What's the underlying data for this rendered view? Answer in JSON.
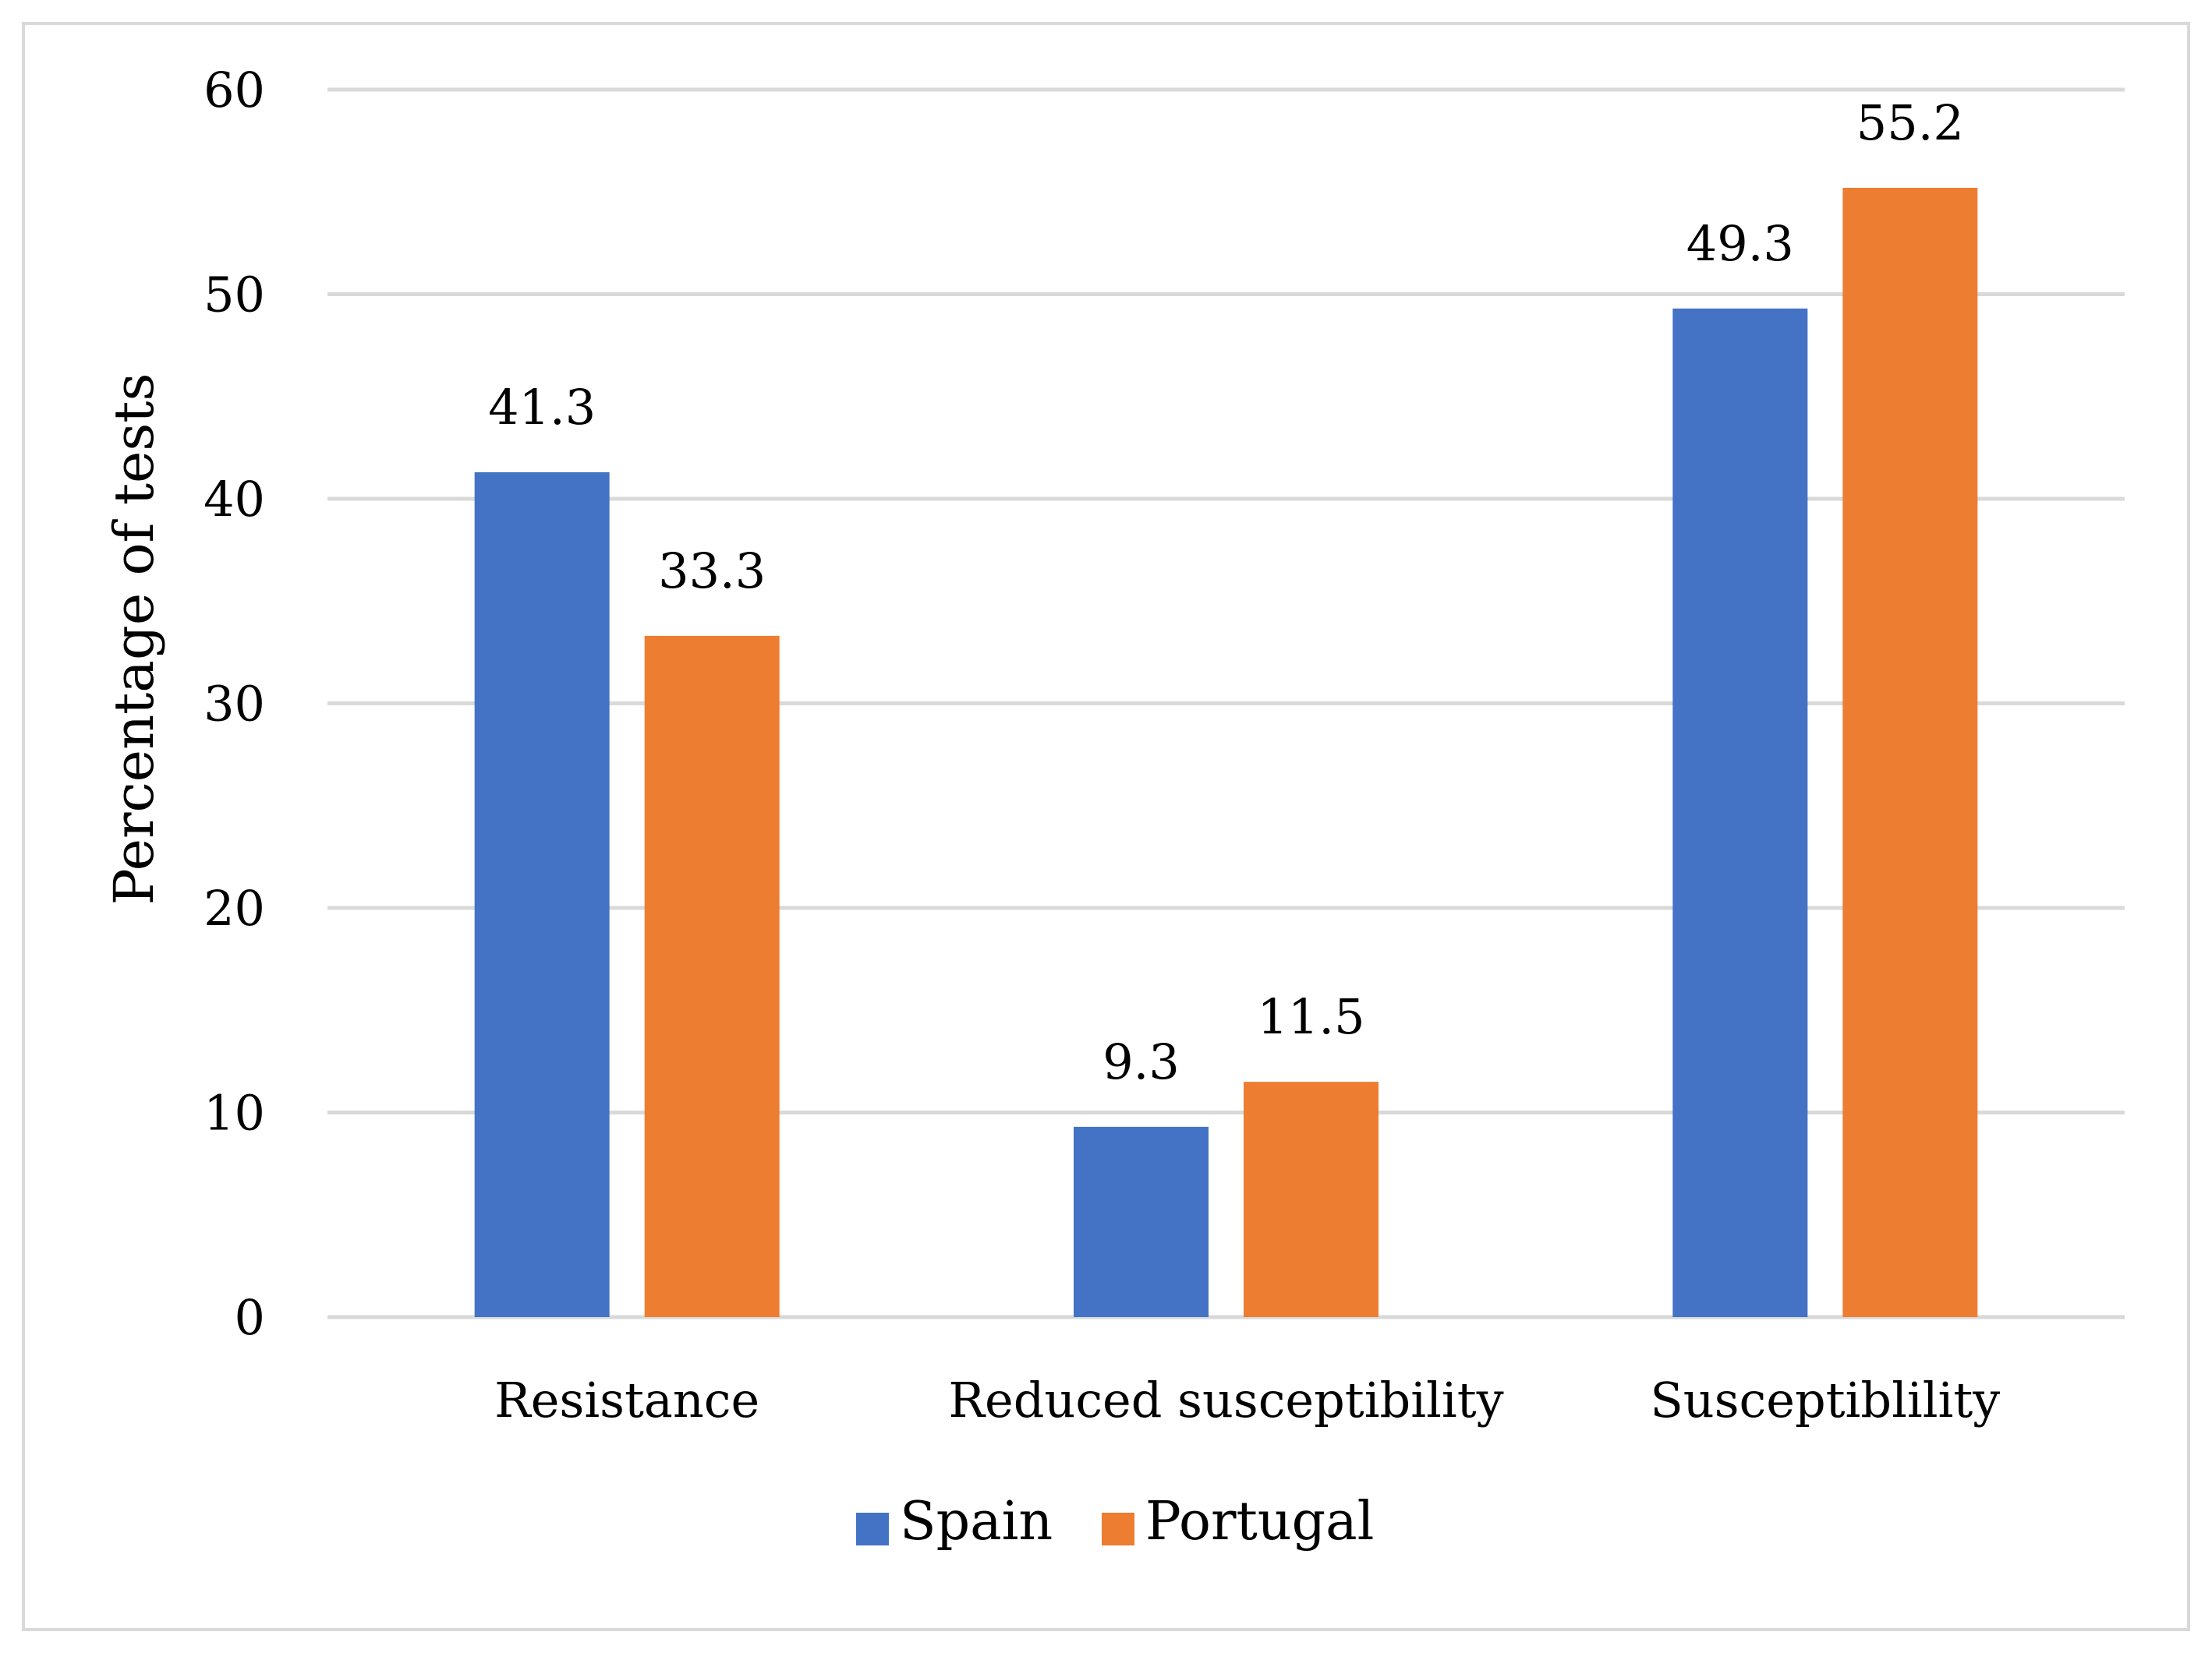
{
  "chart_data": {
    "type": "bar",
    "title": "",
    "xlabel": "",
    "ylabel": "Percentage of tests",
    "categories": [
      "Resistance",
      "Reduced susceptibility",
      "Susceptiblility"
    ],
    "series": [
      {
        "name": "Spain",
        "color": "#4472c4",
        "values": [
          41.3,
          9.3,
          49.3
        ]
      },
      {
        "name": "Portugal",
        "color": "#ed7d31",
        "values": [
          33.3,
          11.5,
          55.2
        ]
      }
    ],
    "ylim": [
      0,
      60
    ],
    "yticks": [
      0,
      10,
      20,
      30,
      40,
      50,
      60
    ],
    "grid": true,
    "legend_position": "bottom",
    "gridline_color": "#d9d9d9"
  }
}
